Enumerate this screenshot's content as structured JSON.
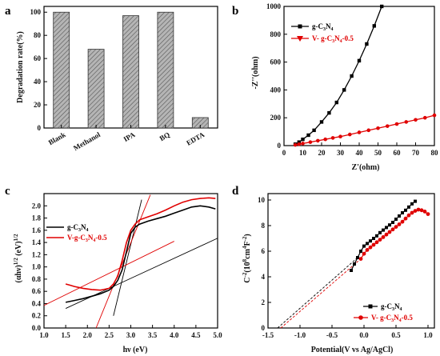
{
  "chart_data": [
    {
      "panel": "a",
      "type": "bar",
      "categories": [
        "Blank",
        "Methanol",
        "IPA",
        "BQ",
        "EDTA"
      ],
      "values": [
        100,
        68,
        97,
        100,
        9
      ],
      "ylabel": "Degradation rate(%)",
      "ylim": [
        0,
        105
      ],
      "yticks": [
        0,
        20,
        40,
        60,
        80,
        100
      ],
      "bar_fill": "#a9a9a9",
      "hatch": "diagonal"
    },
    {
      "panel": "b",
      "type": "line",
      "xlabel": "Z'(ohm)",
      "ylabel": "-Z''(ohm)",
      "xlim": [
        0,
        80
      ],
      "ylim": [
        0,
        1000
      ],
      "xticks": [
        0,
        10,
        20,
        30,
        40,
        50,
        60,
        70,
        80
      ],
      "yticks": [
        0,
        200,
        400,
        600,
        800,
        1000
      ],
      "legend_position": "top-left",
      "series": [
        {
          "name": "g-C3N4",
          "color": "#000000",
          "marker": "square",
          "x": [
            6,
            8,
            10,
            13,
            16,
            20,
            24,
            28,
            32,
            36,
            40,
            44,
            48,
            52
          ],
          "y": [
            10,
            25,
            45,
            75,
            110,
            170,
            235,
            310,
            400,
            500,
            610,
            730,
            860,
            1000
          ]
        },
        {
          "name": "V- g-C3N4-0.5",
          "color": "#e00000",
          "marker": "circle",
          "x": [
            6,
            8,
            10,
            14,
            18,
            22,
            26,
            30,
            35,
            40,
            45,
            50,
            55,
            60,
            65,
            70,
            75,
            80
          ],
          "y": [
            5,
            10,
            15,
            25,
            35,
            45,
            55,
            65,
            80,
            95,
            110,
            125,
            140,
            155,
            170,
            185,
            200,
            218
          ]
        }
      ]
    },
    {
      "panel": "c",
      "type": "line",
      "xlabel": "hν (eV)",
      "ylabel": "(αhν)1/2 (eV)1/2",
      "xlim": [
        1.0,
        5.0
      ],
      "ylim": [
        0.0,
        2.2
      ],
      "xticks": [
        1.0,
        1.5,
        2.0,
        2.5,
        3.0,
        3.5,
        4.0,
        4.5,
        5.0
      ],
      "yticks": [
        0.0,
        0.2,
        0.4,
        0.6,
        0.8,
        1.0,
        1.2,
        1.4,
        1.6,
        1.8,
        2.0
      ],
      "legend_position": "left",
      "series": [
        {
          "name": "g-C3N4",
          "color": "#000000",
          "x": [
            1.5,
            1.7,
            1.9,
            2.1,
            2.3,
            2.5,
            2.6,
            2.7,
            2.8,
            2.9,
            3.0,
            3.1,
            3.2,
            3.4,
            3.6,
            3.8,
            4.0,
            4.2,
            4.4,
            4.6,
            4.8,
            4.95
          ],
          "y": [
            0.42,
            0.45,
            0.48,
            0.52,
            0.56,
            0.62,
            0.68,
            0.78,
            0.95,
            1.25,
            1.55,
            1.65,
            1.7,
            1.75,
            1.79,
            1.83,
            1.88,
            1.93,
            1.98,
            2.0,
            1.98,
            1.95
          ]
        },
        {
          "name": "V-g-C3N4-0.5",
          "color": "#e00000",
          "x": [
            1.5,
            1.6,
            1.7,
            1.9,
            2.1,
            2.3,
            2.5,
            2.6,
            2.7,
            2.8,
            2.9,
            3.0,
            3.1,
            3.2,
            3.4,
            3.6,
            3.8,
            4.0,
            4.2,
            4.4,
            4.6,
            4.8,
            4.95
          ],
          "y": [
            0.72,
            0.7,
            0.68,
            0.65,
            0.63,
            0.62,
            0.65,
            0.72,
            0.85,
            1.1,
            1.4,
            1.6,
            1.7,
            1.77,
            1.82,
            1.87,
            1.93,
            2.0,
            2.06,
            2.1,
            2.12,
            2.13,
            2.12
          ]
        }
      ],
      "fit_lines": [
        {
          "color": "#000000",
          "x": [
            1.5,
            5.0
          ],
          "y": [
            0.32,
            1.47
          ]
        },
        {
          "color": "#000000",
          "x": [
            2.6,
            3.25
          ],
          "y": [
            0.2,
            2.1
          ]
        },
        {
          "color": "#e00000",
          "x": [
            1.0,
            4.0
          ],
          "y": [
            0.37,
            1.42
          ]
        },
        {
          "color": "#e00000",
          "x": [
            2.2,
            3.45
          ],
          "y": [
            0.0,
            2.18
          ]
        }
      ]
    },
    {
      "panel": "d",
      "type": "scatter",
      "xlabel": "Potential(V vs Ag/AgCl)",
      "ylabel": "C-2 (108 cm4F-2)",
      "xlim": [
        -1.5,
        1.1
      ],
      "ylim": [
        0,
        10.5
      ],
      "xticks": [
        -1.5,
        -1.0,
        -0.5,
        0.0,
        0.5,
        1.0
      ],
      "yticks": [
        0,
        2,
        4,
        6,
        8,
        10
      ],
      "legend_position": "bottom-right",
      "series": [
        {
          "name": "g-C3N4",
          "color": "#000000",
          "marker": "square",
          "x": [
            -0.2,
            -0.15,
            -0.1,
            -0.05,
            0.0,
            0.05,
            0.1,
            0.15,
            0.2,
            0.25,
            0.3,
            0.35,
            0.4,
            0.45,
            0.5,
            0.55,
            0.6,
            0.65,
            0.7,
            0.75,
            0.8
          ],
          "y": [
            4.5,
            5.0,
            5.5,
            6.0,
            6.4,
            6.6,
            6.8,
            7.0,
            7.2,
            7.45,
            7.65,
            7.85,
            8.05,
            8.25,
            8.5,
            8.75,
            9.0,
            9.2,
            9.45,
            9.7,
            9.9
          ]
        },
        {
          "name": "V- g-C3N4-0.5",
          "color": "#e00000",
          "marker": "circle",
          "x": [
            -0.05,
            0.0,
            0.05,
            0.1,
            0.15,
            0.2,
            0.25,
            0.3,
            0.35,
            0.4,
            0.45,
            0.5,
            0.55,
            0.6,
            0.65,
            0.7,
            0.75,
            0.8,
            0.85,
            0.9,
            0.95,
            1.0
          ],
          "y": [
            5.4,
            5.8,
            6.1,
            6.3,
            6.5,
            6.7,
            6.9,
            7.1,
            7.3,
            7.5,
            7.7,
            7.9,
            8.1,
            8.3,
            8.55,
            8.8,
            9.0,
            9.15,
            9.25,
            9.2,
            9.1,
            8.9
          ]
        }
      ],
      "fit_lines": [
        {
          "color": "#000000",
          "dash": true,
          "x": [
            -1.35,
            -0.1
          ],
          "y": [
            0,
            5.5
          ]
        },
        {
          "color": "#e00000",
          "dash": true,
          "x": [
            -1.3,
            -0.05
          ],
          "y": [
            0,
            5.4
          ]
        }
      ]
    }
  ],
  "labels": {
    "a": {
      "panel": "a",
      "ylabel": "Degradation rate(%)"
    },
    "b": {
      "panel": "b",
      "xlabel": "Z'(ohm)",
      "ylabel": "-Z''(ohm)",
      "legend": [
        {
          "base": "g-C",
          "sub1": "3",
          "mid": "N",
          "sub2": "4"
        },
        {
          "base": "V- g-C",
          "sub1": "3",
          "mid": "N",
          "sub2": "4",
          "tail": "-0.5"
        }
      ]
    },
    "c": {
      "panel": "c",
      "xlabel": "hν (eV)",
      "ylabel": {
        "a": "(αhν)",
        "sup1": "1/2",
        "b": " (eV)",
        "sup2": "1/2"
      },
      "legend": [
        {
          "base": "g-C",
          "sub1": "3",
          "mid": "N",
          "sub2": "4"
        },
        {
          "base": "V-g-C",
          "sub1": "3",
          "mid": "N",
          "sub2": "4",
          "tail": "-0.5"
        }
      ]
    },
    "d": {
      "panel": "d",
      "xlabel": "Potential(V vs Ag/AgCl)",
      "ylabel": {
        "a": "C",
        "sup1": "-2",
        "b": "(10",
        "sup2": "8",
        "c": "cm",
        "sup3": "4",
        "d": "F",
        "sup4": "-2",
        "e": ")"
      },
      "legend": [
        {
          "base": "g-C",
          "sub1": "3",
          "mid": "N",
          "sub2": "4"
        },
        {
          "base": "V- g-C",
          "sub1": "3",
          "mid": "N",
          "sub2": "4",
          "tail": "-0.5"
        }
      ]
    }
  }
}
